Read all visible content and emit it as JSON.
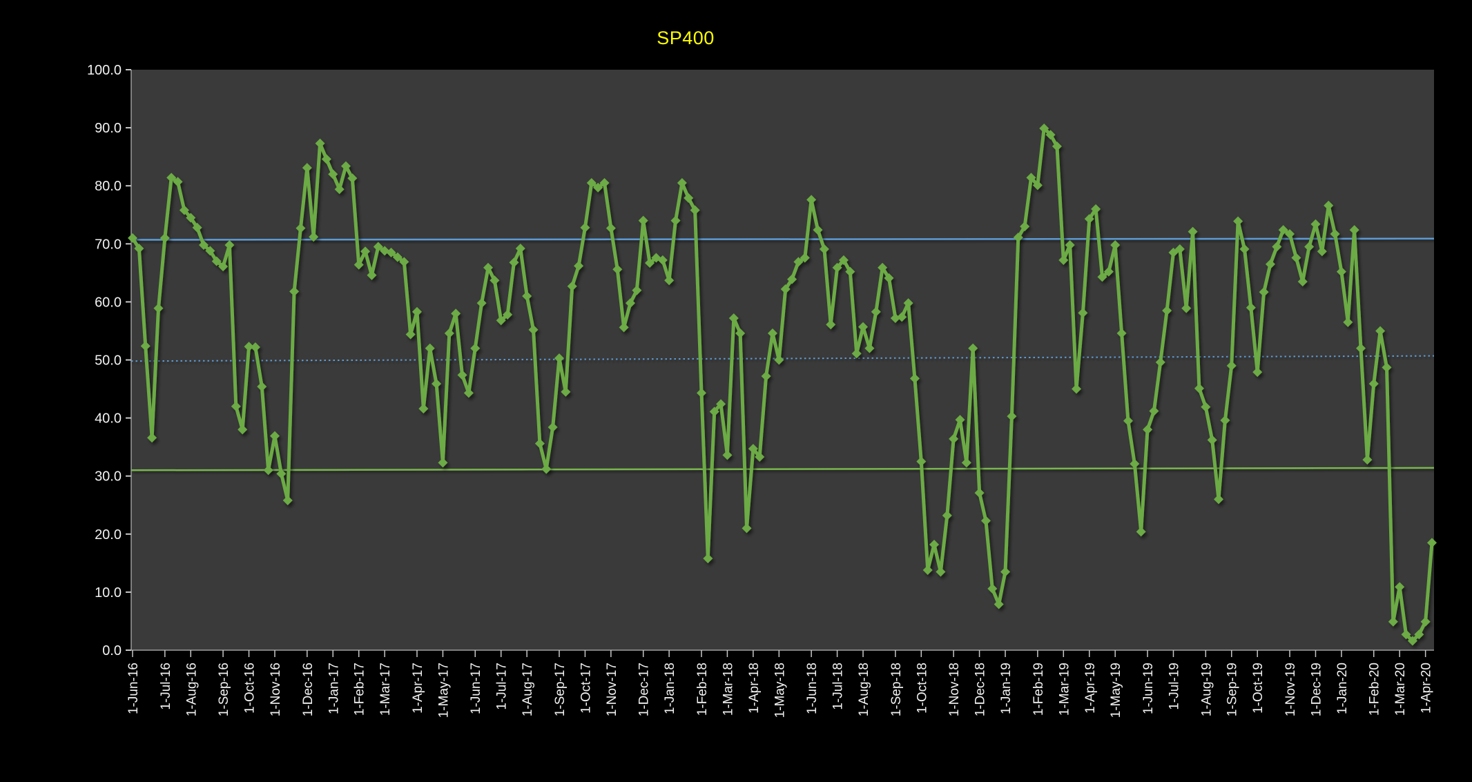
{
  "title": {
    "text": "SP400",
    "color": "#FFFF00"
  },
  "colors": {
    "page_background": "#000000",
    "plot_background": "#3A3A3A",
    "series_green": "#6CAB45",
    "reference_blue": "#5B9BD5",
    "reference_green": "#79B74E",
    "axis_line": "#9E9E9E",
    "tick_mark": "#C8C8C8",
    "axis_text": "#F2F2F2"
  },
  "chart_data": {
    "type": "line",
    "title": "SP400",
    "xlabel": "",
    "ylabel": "",
    "ylim": [
      0,
      100
    ],
    "grid": "off",
    "legend": "none",
    "marker": "diamond",
    "y_tick_labels": [
      "0.0",
      "10.0",
      "20.0",
      "30.0",
      "40.0",
      "50.0",
      "60.0",
      "70.0",
      "80.0",
      "90.0",
      "100.0"
    ],
    "x_tick_labels": [
      "1-Jun-16",
      "1-Jul-16",
      "1-Aug-16",
      "1-Sep-16",
      "1-Oct-16",
      "1-Nov-16",
      "1-Dec-16",
      "1-Jan-17",
      "1-Feb-17",
      "1-Mar-17",
      "1-Apr-17",
      "1-May-17",
      "1-Jun-17",
      "1-Jul-17",
      "1-Aug-17",
      "1-Sep-17",
      "1-Oct-17",
      "1-Nov-17",
      "1-Dec-17",
      "1-Jan-18",
      "1-Feb-18",
      "1-Mar-18",
      "1-Apr-18",
      "1-May-18",
      "1-Jun-18",
      "1-Jul-18",
      "1-Aug-18",
      "1-Sep-18",
      "1-Oct-18",
      "1-Nov-18",
      "1-Dec-18",
      "1-Jan-19",
      "1-Feb-19",
      "1-Mar-19",
      "1-Apr-19",
      "1-May-19",
      "1-Jun-19",
      "1-Jul-19",
      "1-Aug-19",
      "1-Sep-19",
      "1-Oct-19",
      "1-Nov-19",
      "1-Dec-19",
      "1-Jan-20",
      "1-Feb-20",
      "1-Mar-20",
      "1-Apr-20"
    ],
    "x_tick_indices": [
      0,
      5,
      9,
      14,
      18,
      22,
      27,
      31,
      35,
      39,
      44,
      48,
      53,
      57,
      61,
      66,
      70,
      74,
      79,
      83,
      88,
      92,
      96,
      100,
      105,
      109,
      113,
      118,
      122,
      127,
      131,
      135,
      140,
      144,
      148,
      152,
      157,
      161,
      166,
      170,
      174,
      179,
      183,
      187,
      192,
      196,
      200
    ],
    "values": [
      71.0,
      69.2,
      52.4,
      36.6,
      58.9,
      71.0,
      81.4,
      80.7,
      75.8,
      74.5,
      72.8,
      69.8,
      68.8,
      67.0,
      66.1,
      69.8,
      42.0,
      38.0,
      52.3,
      52.2,
      45.4,
      31.0,
      36.9,
      30.4,
      25.8,
      61.8,
      72.7,
      83.1,
      71.2,
      87.3,
      84.6,
      82.0,
      79.4,
      83.4,
      81.3,
      66.4,
      68.7,
      64.6,
      69.5,
      68.8,
      68.5,
      67.7,
      66.9,
      54.4,
      58.3,
      41.6,
      52.0,
      45.9,
      32.3,
      54.6,
      58.0,
      47.4,
      44.3,
      52.0,
      59.8,
      65.9,
      63.7,
      56.8,
      57.8,
      66.8,
      69.2,
      61.0,
      55.2,
      35.6,
      31.2,
      38.4,
      50.3,
      44.5,
      62.7,
      66.2,
      72.8,
      80.5,
      79.7,
      80.5,
      72.7,
      65.6,
      55.6,
      59.8,
      62.0,
      74.0,
      66.7,
      67.6,
      67.2,
      63.7,
      74.0,
      80.5,
      77.9,
      75.8,
      44.3,
      15.8,
      41.1,
      42.4,
      33.6,
      57.2,
      54.6,
      21.0,
      34.7,
      33.3,
      47.2,
      54.6,
      50.0,
      62.2,
      63.9,
      66.9,
      67.6,
      77.6,
      72.4,
      69.1,
      56.1,
      65.9,
      67.2,
      65.2,
      51.1,
      55.7,
      52.0,
      58.3,
      65.9,
      64.1,
      57.2,
      57.4,
      59.8,
      46.8,
      32.5,
      13.8,
      18.2,
      13.5,
      23.2,
      36.4,
      39.7,
      32.3,
      52.0,
      27.1,
      22.3,
      10.6,
      7.9,
      13.5,
      40.3,
      71.1,
      73.0,
      81.4,
      80.1,
      89.9,
      88.8,
      86.8,
      67.2,
      69.8,
      45.0,
      58.1,
      74.3,
      76.0,
      64.3,
      65.2,
      69.8,
      54.6,
      39.5,
      32.1,
      20.4,
      38.0,
      41.2,
      49.6,
      58.5,
      68.5,
      69.1,
      58.9,
      72.1,
      45.1,
      41.9,
      36.2,
      26.0,
      39.6,
      49.0,
      73.9,
      69.1,
      59.0,
      47.9,
      61.7,
      66.5,
      69.5,
      72.4,
      71.7,
      67.6,
      63.5,
      69.5,
      73.4,
      68.7,
      76.6,
      71.7,
      65.2,
      56.5,
      72.4,
      52.0,
      32.8,
      45.9,
      55.0,
      48.7,
      4.9,
      10.9,
      2.7,
      1.6,
      2.7,
      4.9,
      18.5
    ],
    "reference_lines": [
      {
        "name": "upper-blue-solid",
        "style": "solid",
        "color": "#5B9BD5",
        "start": 70.7,
        "end": 70.9
      },
      {
        "name": "middle-blue-dotted",
        "style": "dotted",
        "color": "#5B9BD5",
        "start": 49.8,
        "end": 50.7
      },
      {
        "name": "lower-green-solid",
        "style": "solid",
        "color": "#79B74E",
        "start": 31.0,
        "end": 31.4
      }
    ]
  }
}
